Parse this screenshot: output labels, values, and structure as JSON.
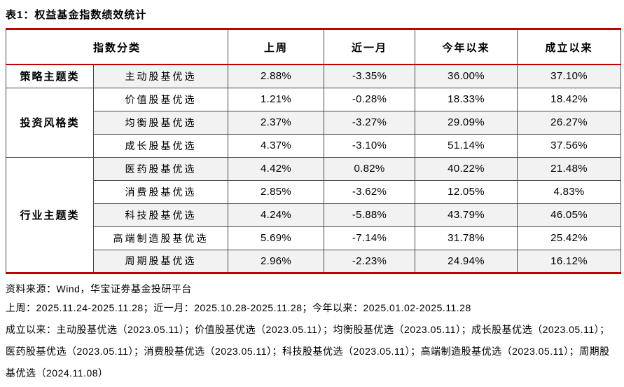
{
  "title": "表1：权益基金指数绩效统计",
  "accent_color": "#c00000",
  "row_shade_color": "#f2f2f2",
  "table": {
    "header": {
      "classification": "指数分类",
      "columns": [
        "上周",
        "近一月",
        "今年以来",
        "成立以来"
      ]
    },
    "groups": [
      {
        "category": "策略主题类",
        "rows": [
          {
            "name": "主动股基优选",
            "values": [
              "2.88%",
              "-3.35%",
              "36.00%",
              "37.10%"
            ]
          }
        ]
      },
      {
        "category": "投资风格类",
        "rows": [
          {
            "name": "价值股基优选",
            "values": [
              "1.21%",
              "-0.28%",
              "18.33%",
              "18.42%"
            ]
          },
          {
            "name": "均衡股基优选",
            "values": [
              "2.37%",
              "-3.27%",
              "29.09%",
              "26.27%"
            ]
          },
          {
            "name": "成长股基优选",
            "values": [
              "4.37%",
              "-3.10%",
              "51.14%",
              "37.56%"
            ]
          }
        ]
      },
      {
        "category": "行业主题类",
        "rows": [
          {
            "name": "医药股基优选",
            "values": [
              "4.42%",
              "0.82%",
              "40.22%",
              "21.48%"
            ]
          },
          {
            "name": "消费股基优选",
            "values": [
              "2.85%",
              "-3.62%",
              "12.05%",
              "4.83%"
            ]
          },
          {
            "name": "科技股基优选",
            "values": [
              "4.24%",
              "-5.88%",
              "43.79%",
              "46.05%"
            ]
          },
          {
            "name": "高端制造股基优选",
            "values": [
              "5.69%",
              "-7.14%",
              "31.78%",
              "25.42%"
            ]
          },
          {
            "name": "周期股基优选",
            "values": [
              "2.96%",
              "-2.23%",
              "24.94%",
              "16.12%"
            ]
          }
        ]
      }
    ]
  },
  "footer": {
    "source": "资料来源：Wind，华宝证券基金投研平台",
    "note_periods": "上周：2025.11.24-2025.11.28；近一月：2025.10.28-2025.11.28；今年以来：2025.01.02-2025.11.28",
    "note_inception": "成立以来：主动股基优选（2023.05.11）；价值股基优选（2023.05.11）；均衡股基优选（2023.05.11）；成长股基优选（2023.05.11）；医药股基优选（2023.05.11）；消费股基优选（2023.05.11）；科技股基优选（2023.05.11）；高端制造股基优选（2023.05.11）；周期股基优选（2024.11.08）"
  }
}
